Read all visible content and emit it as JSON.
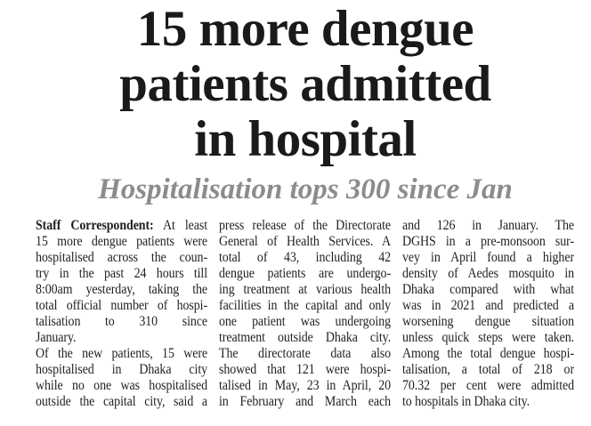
{
  "headline": {
    "lines": [
      "15 more dengue",
      "patients admitted",
      "in hospital"
    ]
  },
  "subheadline": "Hospitalisation tops 300 since Jan",
  "colors": {
    "headline": "#1a1a1a",
    "subheadline": "#8c8c8e",
    "body_text": "#1f1f1f",
    "background": "#ffffff"
  },
  "article": {
    "columns": [
      {
        "lines": [
          {
            "bold": "Staff Correspondent:",
            "text": " At least",
            "justify": true
          },
          {
            "text": "15 more dengue patients were",
            "justify": true
          },
          {
            "text": "hospitalised across the coun-",
            "justify": true
          },
          {
            "text": "try in the past 24 hours till",
            "justify": true
          },
          {
            "text": "8:00am yesterday, taking the",
            "justify": true
          },
          {
            "text": "total official number of hospi-",
            "justify": true
          },
          {
            "text": "talisation to 310 since",
            "justify": true
          },
          {
            "text": "January.",
            "justify": false
          },
          {
            "text": "Of the new patients, 15 were",
            "justify": true
          },
          {
            "text": "hospitalised in Dhaka city",
            "justify": true
          },
          {
            "text": "while no one was hospitalised",
            "justify": true
          },
          {
            "text": "outside the capital city, said a",
            "justify": true
          }
        ]
      },
      {
        "lines": [
          {
            "text": "press release of the Directorate",
            "justify": true
          },
          {
            "text": "General of Health Services. A",
            "justify": true
          },
          {
            "text": "total of 43, including 42",
            "justify": true
          },
          {
            "text": "dengue patients are undergo-",
            "justify": true
          },
          {
            "text": "ing treatment at various health",
            "justify": true
          },
          {
            "text": "facilities in the capital and only",
            "justify": true
          },
          {
            "text": "one patient was undergoing",
            "justify": true
          },
          {
            "text": "treatment outside Dhaka city.",
            "justify": true
          },
          {
            "text": "The directorate data also",
            "justify": true
          },
          {
            "text": "showed that 121 were hospi-",
            "justify": true
          },
          {
            "text": "talised in May, 23 in April, 20",
            "justify": true
          },
          {
            "text": "in February and March each",
            "justify": true
          }
        ]
      },
      {
        "lines": [
          {
            "text": "and 126 in January. The",
            "justify": true
          },
          {
            "text": "DGHS in a pre-monsoon sur-",
            "justify": true
          },
          {
            "text": "vey in April found a higher",
            "justify": true
          },
          {
            "text": "density of Aedes mosquito in",
            "justify": true
          },
          {
            "text": "Dhaka compared with what",
            "justify": true
          },
          {
            "text": "was in 2021 and predicted a",
            "justify": true
          },
          {
            "text": "worsening dengue situation",
            "justify": true
          },
          {
            "text": "unless quick steps were taken.",
            "justify": true
          },
          {
            "text": "Among the total dengue hospi-",
            "justify": true
          },
          {
            "text": "talisation, a total of 218 or",
            "justify": true
          },
          {
            "text": "70.32 per cent were admitted",
            "justify": true
          },
          {
            "text": "to hospitals in Dhaka city.",
            "justify": false
          }
        ]
      }
    ]
  }
}
